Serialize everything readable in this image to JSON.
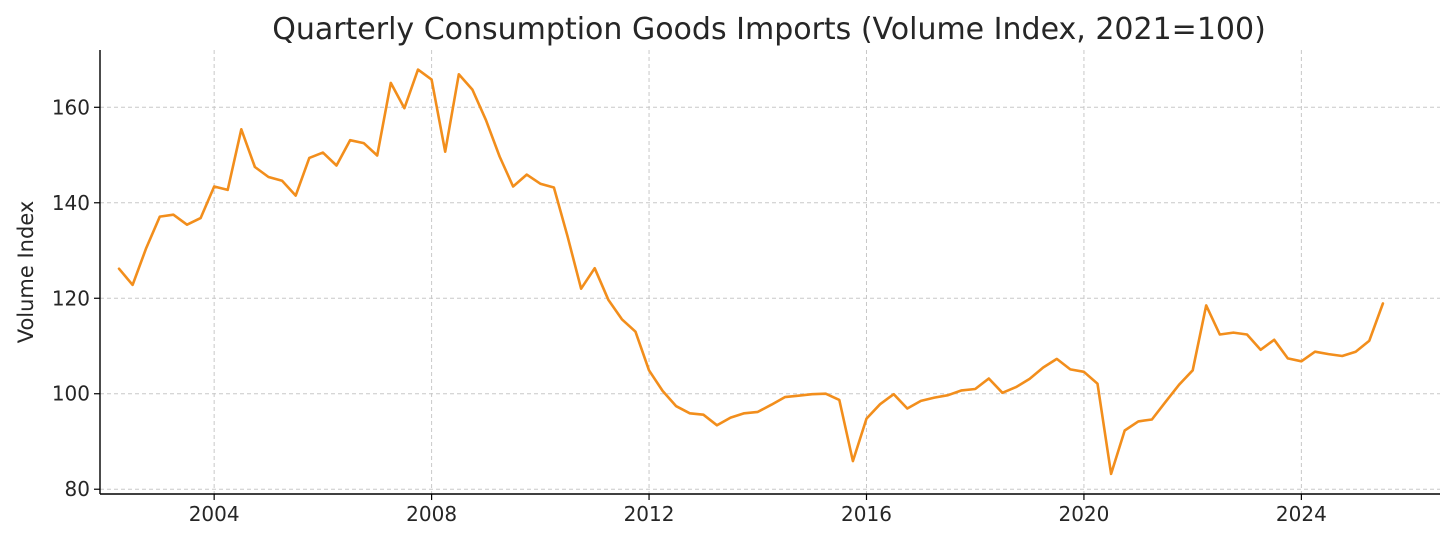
{
  "chart_data": {
    "type": "line",
    "title": "Quarterly Consumption Goods Imports (Volume Index, 2021=100)",
    "xlabel": "",
    "ylabel": "Volume Index",
    "xlim": [
      2001.9,
      2026.55
    ],
    "ylim": [
      79,
      172
    ],
    "x_ticks": [
      2004,
      2008,
      2012,
      2016,
      2020,
      2024
    ],
    "y_ticks": [
      80,
      100,
      120,
      140,
      160
    ],
    "grid": true,
    "legend": "none",
    "series": [
      {
        "color": "#f28e1c",
        "x": [
          "2002Q2",
          "2002Q3",
          "2002Q4",
          "2003Q1",
          "2003Q2",
          "2003Q3",
          "2003Q4",
          "2004Q1",
          "2004Q2",
          "2004Q3",
          "2004Q4",
          "2005Q1",
          "2005Q2",
          "2005Q3",
          "2005Q4",
          "2006Q1",
          "2006Q2",
          "2006Q3",
          "2006Q4",
          "2007Q1",
          "2007Q2",
          "2007Q3",
          "2007Q4",
          "2008Q1",
          "2008Q2",
          "2008Q3",
          "2008Q4",
          "2009Q1",
          "2009Q2",
          "2009Q3",
          "2009Q4",
          "2010Q1",
          "2010Q2",
          "2010Q3",
          "2010Q4",
          "2011Q1",
          "2011Q2",
          "2011Q3",
          "2011Q4",
          "2012Q1",
          "2012Q2",
          "2012Q3",
          "2012Q4",
          "2013Q1",
          "2013Q2",
          "2013Q3",
          "2013Q4",
          "2014Q1",
          "2014Q2",
          "2014Q3",
          "2014Q4",
          "2015Q1",
          "2015Q2",
          "2015Q3",
          "2015Q4",
          "2016Q1",
          "2016Q2",
          "2016Q3",
          "2016Q4",
          "2017Q1",
          "2017Q2",
          "2017Q3",
          "2017Q4",
          "2018Q1",
          "2018Q2",
          "2018Q3",
          "2018Q4",
          "2019Q1",
          "2019Q2",
          "2019Q3",
          "2019Q4",
          "2020Q1",
          "2020Q2",
          "2020Q3",
          "2020Q4",
          "2021Q1",
          "2021Q2",
          "2021Q3",
          "2021Q4",
          "2022Q1",
          "2022Q2",
          "2022Q3",
          "2022Q4",
          "2023Q1",
          "2023Q2",
          "2023Q3",
          "2023Q4",
          "2024Q1",
          "2024Q2",
          "2024Q3",
          "2024Q4",
          "2025Q1",
          "2025Q2",
          "2025Q3"
        ],
        "values": [
          126.2,
          122.8,
          130.5,
          137.1,
          137.5,
          135.4,
          136.8,
          143.4,
          142.7,
          155.4,
          147.5,
          145.4,
          144.6,
          141.5,
          149.4,
          150.5,
          147.8,
          153.1,
          152.5,
          149.9,
          165.1,
          159.8,
          167.9,
          165.8,
          150.7,
          166.9,
          163.7,
          157.3,
          149.7,
          143.4,
          145.9,
          144.0,
          143.2,
          133.0,
          122.0,
          126.3,
          119.7,
          115.6,
          113.0,
          104.9,
          100.6,
          97.4,
          95.9,
          95.6,
          93.4,
          95.0,
          95.9,
          96.2,
          97.7,
          99.3,
          99.6,
          99.9,
          100.0,
          98.7,
          85.9,
          94.8,
          97.8,
          99.9,
          96.9,
          98.5,
          99.2,
          99.7,
          100.7,
          101.0,
          103.2,
          100.2,
          101.4,
          103.1,
          105.5,
          107.3,
          105.1,
          104.6,
          102.1,
          83.2,
          92.3,
          94.2,
          94.6,
          98.3,
          101.9,
          104.9,
          118.5,
          112.4,
          112.8,
          112.4,
          109.2,
          111.3,
          107.4,
          106.8,
          108.8,
          108.3,
          107.9,
          108.8,
          111.1,
          118.9
        ]
      }
    ]
  }
}
